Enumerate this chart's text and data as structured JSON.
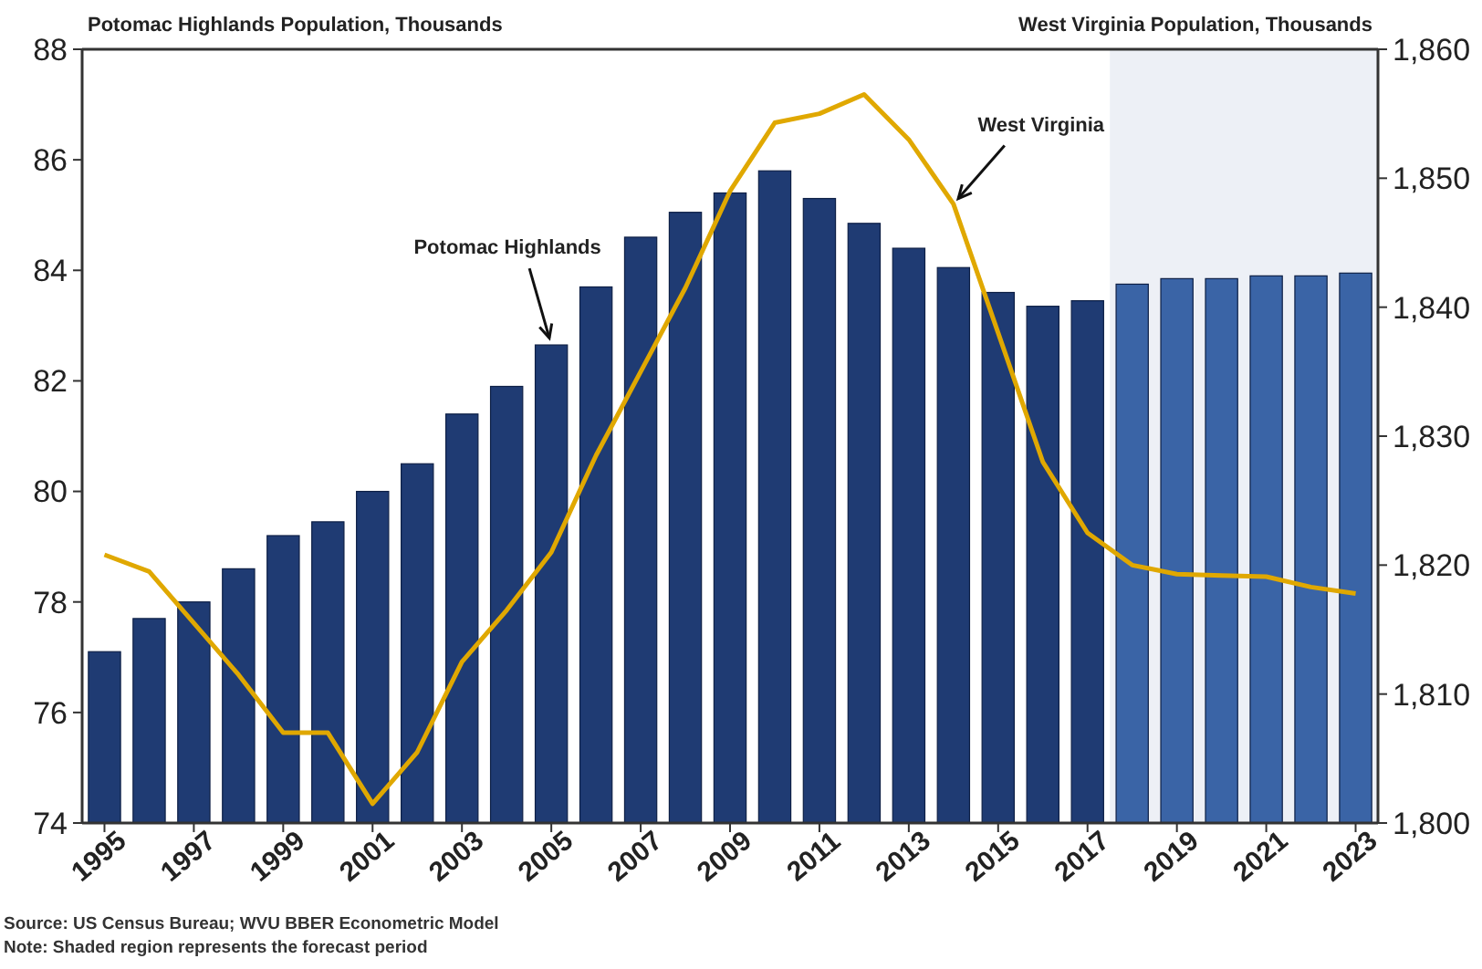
{
  "chart_data": {
    "type": "bar",
    "ylabel": "Potomac Highlands Population, Thousands",
    "y2label": "West Virginia Population, Thousands",
    "x": [
      1995,
      1996,
      1997,
      1998,
      1999,
      2000,
      2001,
      2002,
      2003,
      2004,
      2005,
      2006,
      2007,
      2008,
      2009,
      2010,
      2011,
      2012,
      2013,
      2014,
      2015,
      2016,
      2017,
      2018,
      2019,
      2020,
      2021,
      2022,
      2023
    ],
    "xlim": [
      1994.5,
      2023.5
    ],
    "xticks": [
      1995,
      1997,
      1999,
      2001,
      2003,
      2005,
      2007,
      2009,
      2011,
      2013,
      2015,
      2017,
      2019,
      2021,
      2023
    ],
    "ylim": [
      74,
      88
    ],
    "yticks": [
      74,
      76,
      78,
      80,
      82,
      84,
      86,
      88
    ],
    "y2lim": [
      1800,
      1860
    ],
    "y2ticks": [
      {
        "value": 1800,
        "label": "1,800"
      },
      {
        "value": 1810,
        "label": "1,810"
      },
      {
        "value": 1820,
        "label": "1,820"
      },
      {
        "value": 1830,
        "label": "1,830"
      },
      {
        "value": 1840,
        "label": "1,840"
      },
      {
        "value": 1850,
        "label": "1,850"
      },
      {
        "value": 1860,
        "label": "1,860"
      }
    ],
    "series": [
      {
        "name": "Potomac Highlands",
        "colors": [
          "#1f3b73",
          "#1f3b73",
          "#1f3b73",
          "#1f3b73",
          "#1f3b73",
          "#1f3b73",
          "#1f3b73",
          "#1f3b73",
          "#1f3b73",
          "#1f3b73",
          "#1f3b73",
          "#1f3b73",
          "#1f3b73",
          "#1f3b73",
          "#1f3b73",
          "#1f3b73",
          "#1f3b73",
          "#1f3b73",
          "#1f3b73",
          "#1f3b73",
          "#1f3b73",
          "#1f3b73",
          "#1f3b73",
          "#3a64a6",
          "#3a64a6",
          "#3a64a6",
          "#3a64a6",
          "#3a64a6",
          "#3a64a6"
        ],
        "values": [
          77.1,
          77.7,
          78.0,
          78.6,
          79.2,
          79.45,
          80.0,
          80.5,
          81.4,
          81.9,
          82.65,
          83.7,
          84.6,
          85.05,
          85.4,
          85.8,
          85.3,
          84.85,
          84.4,
          84.05,
          83.6,
          83.35,
          83.45,
          83.75,
          83.85,
          83.85,
          83.9,
          83.9,
          83.95
        ]
      },
      {
        "name": "West Virginia",
        "type": "line",
        "axis": "y2",
        "color": "#e0a800",
        "values": [
          1820.8,
          1819.5,
          1815.5,
          1811.5,
          1807,
          1807,
          1801.5,
          1805.5,
          1812.5,
          1816.5,
          1821,
          1828.5,
          1835,
          1841.5,
          1849,
          1854.3,
          1855,
          1856.5,
          1853,
          1848,
          1838,
          1828,
          1822.5,
          1820,
          1819.3,
          1819.2,
          1819.1,
          1818.3,
          1817.8
        ]
      }
    ],
    "bands": [
      {
        "axis": "x",
        "from": 2017.5,
        "to": 2023.5,
        "color": "#edf0f6"
      }
    ],
    "annotations": [
      "Source: US Census Bureau; WVU BBER Econometric Model",
      "Note: Shaded region represents the forecast period"
    ],
    "grid": false,
    "legend": false,
    "marker": "none",
    "line_style": "solid"
  }
}
